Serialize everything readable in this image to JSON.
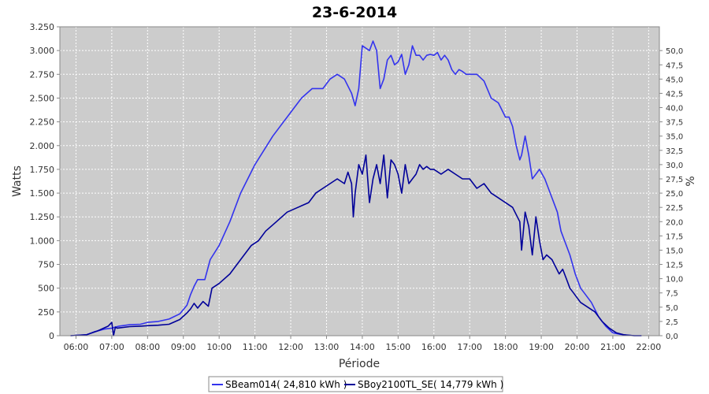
{
  "chart_data": {
    "type": "line",
    "title": "23-6-2014",
    "xlabel": "Période",
    "ylabel": "Watts",
    "y2label": "%",
    "xlim": [
      5.55,
      22.3
    ],
    "ylim": [
      0,
      3250
    ],
    "y2lim": [
      0,
      54.17
    ],
    "x_ticks": [
      6,
      7,
      8,
      9,
      10,
      11,
      12,
      13,
      14,
      15,
      16,
      17,
      18,
      19,
      20,
      21,
      22
    ],
    "x_tick_labels": [
      "06:00",
      "07:00",
      "08:00",
      "09:00",
      "10:00",
      "11:00",
      "12:00",
      "13:00",
      "14:00",
      "15:00",
      "16:00",
      "17:00",
      "18:00",
      "19:00",
      "20:00",
      "21:00",
      "22:00"
    ],
    "y_ticks": [
      0,
      250,
      500,
      750,
      1000,
      1250,
      1500,
      1750,
      2000,
      2250,
      2500,
      2750,
      3000,
      3250
    ],
    "y_tick_labels": [
      "0",
      "250",
      "500",
      "750",
      "1.000",
      "1.250",
      "1.500",
      "1.750",
      "2.000",
      "2.250",
      "2.500",
      "2.750",
      "3.000",
      "3.250"
    ],
    "y2_ticks": [
      0,
      2.5,
      5,
      7.5,
      10,
      12.5,
      15,
      17.5,
      20,
      22.5,
      25,
      27.5,
      30,
      32.5,
      35,
      37.5,
      40,
      42.5,
      45,
      47.5,
      50
    ],
    "y2_tick_labels": [
      "0,0",
      "2,5",
      "5,0",
      "7,5",
      "10,0",
      "12,5",
      "15,0",
      "17,5",
      "20,0",
      "22,5",
      "25,0",
      "27,5",
      "30,0",
      "32,5",
      "35,0",
      "37,5",
      "40,0",
      "42,5",
      "45,0",
      "47,5",
      "50,0"
    ],
    "grid": true,
    "legend_position": "bottom-center",
    "background_color": "#cccccc",
    "series": [
      {
        "name": "SBeam014( 24,810 kWh )",
        "color": "#3333ee",
        "x": [
          5.85,
          6.3,
          6.5,
          6.8,
          7.0,
          7.1,
          7.2,
          7.5,
          7.8,
          8.0,
          8.3,
          8.6,
          8.9,
          9.1,
          9.2,
          9.3,
          9.4,
          9.6,
          9.75,
          10.0,
          10.3,
          10.6,
          11.0,
          11.5,
          12.0,
          12.3,
          12.6,
          12.9,
          13.1,
          13.3,
          13.5,
          13.7,
          13.8,
          13.9,
          14.0,
          14.2,
          14.3,
          14.4,
          14.5,
          14.6,
          14.7,
          14.8,
          14.9,
          15.0,
          15.1,
          15.2,
          15.3,
          15.4,
          15.5,
          15.6,
          15.7,
          15.8,
          15.9,
          16.0,
          16.1,
          16.2,
          16.3,
          16.4,
          16.5,
          16.6,
          16.7,
          16.8,
          16.9,
          17.0,
          17.2,
          17.4,
          17.6,
          17.8,
          18.0,
          18.1,
          18.2,
          18.3,
          18.4,
          18.45,
          18.55,
          18.65,
          18.75,
          18.85,
          18.95,
          19.1,
          19.3,
          19.45,
          19.55,
          19.65,
          19.8,
          19.95,
          20.1,
          20.2,
          20.4,
          20.6,
          20.8,
          21.0,
          21.2,
          21.4,
          21.6,
          21.8
        ],
        "values": [
          0,
          10,
          40,
          70,
          80,
          90,
          100,
          115,
          120,
          140,
          150,
          175,
          230,
          320,
          430,
          520,
          590,
          590,
          800,
          950,
          1200,
          1500,
          1800,
          2100,
          2350,
          2500,
          2600,
          2600,
          2700,
          2750,
          2700,
          2550,
          2420,
          2600,
          3050,
          3000,
          3100,
          3000,
          2600,
          2700,
          2900,
          2950,
          2850,
          2880,
          2960,
          2750,
          2850,
          3050,
          2950,
          2950,
          2900,
          2950,
          2960,
          2950,
          2980,
          2900,
          2950,
          2900,
          2800,
          2750,
          2800,
          2780,
          2750,
          2750,
          2750,
          2680,
          2500,
          2450,
          2300,
          2300,
          2200,
          2000,
          1850,
          1900,
          2100,
          1900,
          1650,
          1700,
          1750,
          1650,
          1450,
          1300,
          1100,
          1000,
          850,
          650,
          500,
          450,
          350,
          200,
          100,
          30,
          15,
          5,
          0,
          0
        ]
      },
      {
        "name": "SBoy2100TL_SE( 14,779 kWh )",
        "color": "#000099",
        "x": [
          5.85,
          6.3,
          6.6,
          6.9,
          7.0,
          7.05,
          7.1,
          7.15,
          7.5,
          7.8,
          8.0,
          8.3,
          8.6,
          8.9,
          9.1,
          9.2,
          9.3,
          9.4,
          9.55,
          9.7,
          9.8,
          10.0,
          10.3,
          10.6,
          10.9,
          11.1,
          11.3,
          11.6,
          11.9,
          12.2,
          12.5,
          12.7,
          12.9,
          13.1,
          13.3,
          13.5,
          13.6,
          13.7,
          13.75,
          13.8,
          13.9,
          14.0,
          14.1,
          14.2,
          14.3,
          14.4,
          14.5,
          14.6,
          14.7,
          14.8,
          14.9,
          15.0,
          15.1,
          15.2,
          15.3,
          15.4,
          15.5,
          15.6,
          15.7,
          15.8,
          15.9,
          16.0,
          16.2,
          16.4,
          16.6,
          16.8,
          17.0,
          17.2,
          17.4,
          17.6,
          17.8,
          18.0,
          18.2,
          18.4,
          18.45,
          18.55,
          18.65,
          18.75,
          18.85,
          18.95,
          19.05,
          19.15,
          19.3,
          19.5,
          19.6,
          19.7,
          19.8,
          19.9,
          20.0,
          20.1,
          20.3,
          20.5,
          20.7,
          20.9,
          21.1,
          21.3,
          21.6,
          21.8
        ],
        "values": [
          0,
          10,
          50,
          100,
          140,
          0,
          90,
          80,
          95,
          100,
          105,
          110,
          120,
          170,
          240,
          280,
          340,
          290,
          360,
          310,
          500,
          550,
          650,
          800,
          950,
          1000,
          1100,
          1200,
          1300,
          1350,
          1400,
          1500,
          1550,
          1600,
          1650,
          1600,
          1720,
          1600,
          1250,
          1500,
          1800,
          1700,
          1900,
          1400,
          1650,
          1800,
          1600,
          1900,
          1450,
          1850,
          1800,
          1700,
          1500,
          1800,
          1600,
          1650,
          1700,
          1800,
          1750,
          1780,
          1750,
          1750,
          1700,
          1750,
          1700,
          1650,
          1650,
          1550,
          1600,
          1500,
          1450,
          1400,
          1350,
          1200,
          900,
          1300,
          1150,
          850,
          1250,
          1000,
          800,
          850,
          800,
          650,
          700,
          600,
          500,
          450,
          400,
          350,
          300,
          250,
          150,
          80,
          30,
          10,
          0,
          0
        ]
      }
    ]
  }
}
